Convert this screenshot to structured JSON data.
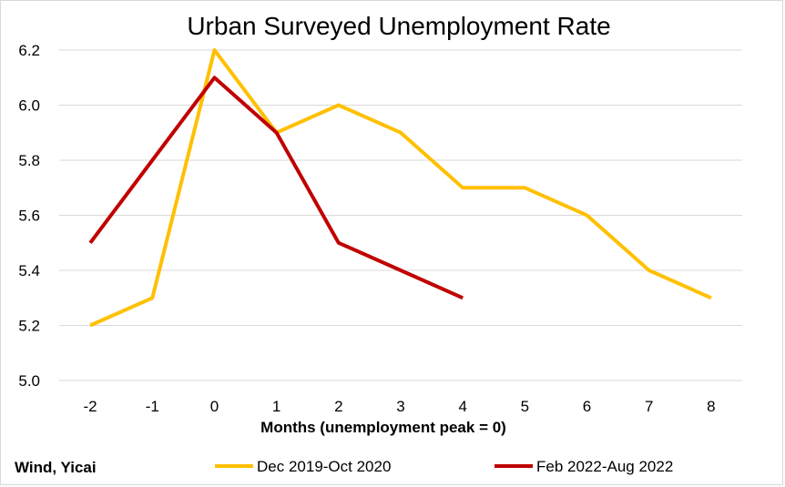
{
  "chart_data": {
    "type": "line",
    "title": "Urban Surveyed Unemployment Rate",
    "xlabel": "Months (unemployment peak = 0)",
    "ylabel": "",
    "x": [
      -2,
      -1,
      0,
      1,
      2,
      3,
      4,
      5,
      6,
      7,
      8
    ],
    "x_tick_labels": [
      "-2",
      "-1",
      "0",
      "1",
      "2",
      "3",
      "4",
      "5",
      "6",
      "7",
      "8"
    ],
    "ylim": [
      5.0,
      6.2
    ],
    "y_ticks": [
      5.0,
      5.2,
      5.4,
      5.6,
      5.8,
      6.0,
      6.2
    ],
    "y_tick_labels": [
      "5.0",
      "5.2",
      "5.4",
      "5.6",
      "5.8",
      "6.0",
      "6.2"
    ],
    "grid": "horizontal",
    "legend_position": "bottom",
    "series": [
      {
        "name": "Dec 2019-Oct 2020",
        "color": "#FFC000",
        "values": [
          5.2,
          5.3,
          6.2,
          5.9,
          6.0,
          5.9,
          5.7,
          5.7,
          5.6,
          5.4,
          5.3
        ]
      },
      {
        "name": "Feb 2022-Aug 2022",
        "color": "#C00000",
        "values": [
          5.5,
          5.8,
          6.1,
          5.9,
          5.5,
          5.4,
          5.3,
          null,
          null,
          null,
          null
        ]
      }
    ],
    "source": "Wind, Yicai"
  }
}
